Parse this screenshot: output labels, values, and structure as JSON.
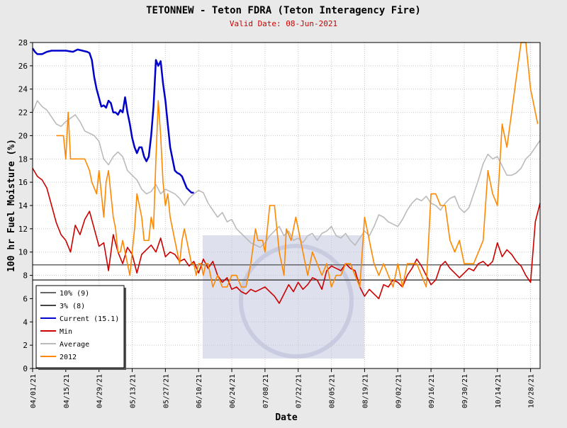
{
  "chart_data": {
    "type": "line",
    "title": "TETONNEW - Teton FDRA (Teton Interagency Fire)",
    "subtitle": "Valid Date: 08-Jun-2021",
    "xlabel": "Date",
    "ylabel": "100 hr Fuel Moisture (%)",
    "ylim": [
      0,
      28
    ],
    "yticks": [
      0,
      2,
      4,
      6,
      8,
      10,
      12,
      14,
      16,
      18,
      20,
      22,
      24,
      26,
      28
    ],
    "xlim": [
      "2021-04-01",
      "2021-11-01"
    ],
    "xticks": [
      "04/01/21",
      "04/15/21",
      "04/29/21",
      "05/13/21",
      "05/27/21",
      "06/10/21",
      "06/24/21",
      "07/08/21",
      "07/22/21",
      "08/05/21",
      "08/19/21",
      "09/02/21",
      "09/16/21",
      "09/30/21",
      "10/14/21",
      "10/28/21"
    ],
    "grid": true,
    "legend_position": "bottom-left",
    "watermark": "Teton Interagency FIRE",
    "reference_lines": [
      {
        "name": "10% (9)",
        "value": 8.9,
        "color": "#666666"
      },
      {
        "name": "3% (8)",
        "value": 7.6,
        "color": "#444444"
      }
    ],
    "series": [
      {
        "name": "Current (15.1)",
        "color": "#0000cc",
        "x": [
          "2021-04-01",
          "2021-04-02",
          "2021-04-03",
          "2021-04-05",
          "2021-04-07",
          "2021-04-09",
          "2021-04-12",
          "2021-04-15",
          "2021-04-18",
          "2021-04-20",
          "2021-04-22",
          "2021-04-24",
          "2021-04-25",
          "2021-04-26",
          "2021-04-27",
          "2021-04-28",
          "2021-04-30",
          "2021-05-01",
          "2021-05-02",
          "2021-05-03",
          "2021-05-04",
          "2021-05-05",
          "2021-05-06",
          "2021-05-07",
          "2021-05-08",
          "2021-05-09",
          "2021-05-10",
          "2021-05-11",
          "2021-05-12",
          "2021-05-13",
          "2021-05-14",
          "2021-05-15",
          "2021-05-16",
          "2021-05-17",
          "2021-05-18",
          "2021-05-19",
          "2021-05-20",
          "2021-05-21",
          "2021-05-22",
          "2021-05-23",
          "2021-05-24",
          "2021-05-25",
          "2021-05-26",
          "2021-05-27",
          "2021-05-28",
          "2021-05-29",
          "2021-05-30",
          "2021-05-31",
          "2021-06-01",
          "2021-06-02",
          "2021-06-03",
          "2021-06-04",
          "2021-06-05",
          "2021-06-06",
          "2021-06-07",
          "2021-06-08"
        ],
        "values": [
          27.5,
          27.2,
          27.0,
          27.0,
          27.2,
          27.3,
          27.3,
          27.3,
          27.2,
          27.4,
          27.3,
          27.2,
          27.1,
          26.5,
          25.0,
          24.0,
          22.5,
          22.6,
          22.4,
          23.0,
          22.8,
          22.0,
          22.0,
          21.8,
          22.2,
          22.0,
          23.3,
          22.0,
          21.0,
          19.8,
          19.0,
          18.5,
          19.0,
          19.0,
          18.2,
          17.8,
          18.2,
          20.0,
          22.5,
          26.5,
          26.0,
          26.4,
          24.5,
          23.0,
          21.0,
          19.0,
          18.0,
          17.0,
          16.8,
          16.7,
          16.5,
          16.0,
          15.5,
          15.3,
          15.1,
          15.1
        ]
      },
      {
        "name": "Min",
        "color": "#cc0000",
        "x": [
          "2021-04-01",
          "2021-04-03",
          "2021-04-05",
          "2021-04-07",
          "2021-04-09",
          "2021-04-11",
          "2021-04-13",
          "2021-04-15",
          "2021-04-17",
          "2021-04-19",
          "2021-04-21",
          "2021-04-23",
          "2021-04-25",
          "2021-04-27",
          "2021-04-29",
          "2021-05-01",
          "2021-05-03",
          "2021-05-05",
          "2021-05-07",
          "2021-05-09",
          "2021-05-11",
          "2021-05-13",
          "2021-05-15",
          "2021-05-17",
          "2021-05-19",
          "2021-05-21",
          "2021-05-23",
          "2021-05-25",
          "2021-05-27",
          "2021-05-29",
          "2021-05-31",
          "2021-06-02",
          "2021-06-04",
          "2021-06-06",
          "2021-06-08",
          "2021-06-10",
          "2021-06-12",
          "2021-06-14",
          "2021-06-16",
          "2021-06-18",
          "2021-06-20",
          "2021-06-22",
          "2021-06-24",
          "2021-06-26",
          "2021-06-28",
          "2021-06-30",
          "2021-07-02",
          "2021-07-04",
          "2021-07-06",
          "2021-07-08",
          "2021-07-10",
          "2021-07-12",
          "2021-07-14",
          "2021-07-16",
          "2021-07-18",
          "2021-07-20",
          "2021-07-22",
          "2021-07-24",
          "2021-07-26",
          "2021-07-28",
          "2021-07-30",
          "2021-08-01",
          "2021-08-03",
          "2021-08-05",
          "2021-08-07",
          "2021-08-09",
          "2021-08-11",
          "2021-08-13",
          "2021-08-15",
          "2021-08-17",
          "2021-08-19",
          "2021-08-21",
          "2021-08-23",
          "2021-08-25",
          "2021-08-27",
          "2021-08-29",
          "2021-08-31",
          "2021-09-02",
          "2021-09-04",
          "2021-09-06",
          "2021-09-08",
          "2021-09-10",
          "2021-09-12",
          "2021-09-14",
          "2021-09-16",
          "2021-09-18",
          "2021-09-20",
          "2021-09-22",
          "2021-09-24",
          "2021-09-26",
          "2021-09-28",
          "2021-09-30",
          "2021-10-02",
          "2021-10-04",
          "2021-10-06",
          "2021-10-08",
          "2021-10-10",
          "2021-10-12",
          "2021-10-14",
          "2021-10-16",
          "2021-10-18",
          "2021-10-20",
          "2021-10-22",
          "2021-10-24",
          "2021-10-26",
          "2021-10-28",
          "2021-10-30",
          "2021-11-01"
        ],
        "values": [
          17.2,
          16.5,
          16.2,
          15.5,
          14.0,
          12.5,
          11.5,
          11.0,
          10.0,
          12.3,
          11.5,
          12.8,
          13.5,
          12.0,
          10.5,
          10.8,
          8.4,
          11.5,
          10.0,
          9.0,
          10.4,
          9.8,
          8.2,
          9.8,
          10.2,
          10.6,
          10.0,
          11.2,
          9.6,
          10.0,
          9.8,
          9.2,
          9.4,
          8.8,
          9.2,
          8.2,
          9.4,
          8.6,
          9.2,
          8.0,
          7.4,
          7.8,
          6.8,
          7.0,
          6.6,
          6.4,
          6.8,
          6.6,
          6.8,
          7.0,
          6.6,
          6.2,
          5.6,
          6.4,
          7.2,
          6.6,
          7.4,
          6.8,
          7.2,
          7.8,
          7.6,
          6.8,
          8.4,
          8.8,
          8.6,
          8.4,
          9.0,
          8.6,
          8.4,
          7.0,
          6.2,
          6.8,
          6.4,
          6.0,
          7.2,
          7.0,
          7.6,
          7.4,
          7.0,
          8.0,
          8.6,
          9.4,
          8.8,
          8.0,
          7.2,
          7.6,
          8.8,
          9.2,
          8.6,
          8.2,
          7.8,
          8.2,
          8.6,
          8.4,
          9.0,
          9.2,
          8.8,
          9.2,
          10.8,
          9.6,
          10.2,
          9.8,
          9.2,
          8.8,
          8.0,
          7.4,
          12.6,
          14.2
        ]
      },
      {
        "name": "Average",
        "color": "#bbbbbb",
        "x": [
          "2021-04-01",
          "2021-04-03",
          "2021-04-05",
          "2021-04-07",
          "2021-04-09",
          "2021-04-11",
          "2021-04-13",
          "2021-04-15",
          "2021-04-17",
          "2021-04-19",
          "2021-04-21",
          "2021-04-23",
          "2021-04-25",
          "2021-04-27",
          "2021-04-29",
          "2021-05-01",
          "2021-05-03",
          "2021-05-05",
          "2021-05-07",
          "2021-05-09",
          "2021-05-11",
          "2021-05-13",
          "2021-05-15",
          "2021-05-17",
          "2021-05-19",
          "2021-05-21",
          "2021-05-23",
          "2021-05-25",
          "2021-05-27",
          "2021-05-29",
          "2021-05-31",
          "2021-06-02",
          "2021-06-04",
          "2021-06-06",
          "2021-06-08",
          "2021-06-10",
          "2021-06-12",
          "2021-06-14",
          "2021-06-16",
          "2021-06-18",
          "2021-06-20",
          "2021-06-22",
          "2021-06-24",
          "2021-06-26",
          "2021-06-28",
          "2021-06-30",
          "2021-07-02",
          "2021-07-04",
          "2021-07-06",
          "2021-07-08",
          "2021-07-10",
          "2021-07-12",
          "2021-07-14",
          "2021-07-16",
          "2021-07-18",
          "2021-07-20",
          "2021-07-22",
          "2021-07-24",
          "2021-07-26",
          "2021-07-28",
          "2021-07-30",
          "2021-08-01",
          "2021-08-03",
          "2021-08-05",
          "2021-08-07",
          "2021-08-09",
          "2021-08-11",
          "2021-08-13",
          "2021-08-15",
          "2021-08-17",
          "2021-08-19",
          "2021-08-21",
          "2021-08-23",
          "2021-08-25",
          "2021-08-27",
          "2021-08-29",
          "2021-08-31",
          "2021-09-02",
          "2021-09-04",
          "2021-09-06",
          "2021-09-08",
          "2021-09-10",
          "2021-09-12",
          "2021-09-14",
          "2021-09-16",
          "2021-09-18",
          "2021-09-20",
          "2021-09-22",
          "2021-09-24",
          "2021-09-26",
          "2021-09-28",
          "2021-09-30",
          "2021-10-02",
          "2021-10-04",
          "2021-10-06",
          "2021-10-08",
          "2021-10-10",
          "2021-10-12",
          "2021-10-14",
          "2021-10-16",
          "2021-10-18",
          "2021-10-20",
          "2021-10-22",
          "2021-10-24",
          "2021-10-26",
          "2021-10-28",
          "2021-10-30",
          "2021-11-01"
        ],
        "values": [
          22.0,
          23.0,
          22.5,
          22.2,
          21.6,
          21.0,
          20.8,
          21.2,
          21.5,
          21.8,
          21.2,
          20.4,
          20.2,
          20.0,
          19.5,
          18.0,
          17.5,
          18.2,
          18.6,
          18.2,
          17.0,
          16.6,
          16.2,
          15.4,
          15.0,
          15.2,
          15.8,
          15.0,
          15.4,
          15.2,
          15.0,
          14.6,
          14.0,
          14.6,
          15.0,
          15.3,
          15.1,
          14.2,
          13.6,
          13.0,
          13.4,
          12.6,
          12.8,
          12.0,
          11.6,
          11.2,
          10.8,
          10.6,
          10.4,
          10.8,
          11.4,
          11.8,
          12.2,
          11.4,
          11.8,
          11.0,
          11.2,
          10.8,
          11.4,
          11.6,
          11.0,
          11.6,
          11.8,
          12.2,
          11.4,
          11.2,
          11.6,
          11.0,
          10.6,
          11.2,
          11.8,
          11.4,
          12.2,
          13.2,
          13.0,
          12.6,
          12.4,
          12.2,
          12.8,
          13.6,
          14.2,
          14.6,
          14.4,
          14.8,
          14.2,
          14.0,
          13.6,
          14.2,
          14.6,
          14.8,
          13.8,
          13.4,
          13.8,
          15.0,
          16.2,
          17.6,
          18.4,
          18.0,
          18.2,
          17.4,
          16.6,
          16.6,
          16.8,
          17.2,
          18.0,
          18.4,
          19.0,
          19.6
        ]
      },
      {
        "name": "2012",
        "color": "#ff8800",
        "x": [
          "2021-04-11",
          "2021-04-14",
          "2021-04-15",
          "2021-04-16",
          "2021-04-17",
          "2021-04-20",
          "2021-04-23",
          "2021-04-25",
          "2021-04-26",
          "2021-04-28",
          "2021-04-29",
          "2021-05-01",
          "2021-05-02",
          "2021-05-03",
          "2021-05-04",
          "2021-05-05",
          "2021-05-06",
          "2021-05-07",
          "2021-05-08",
          "2021-05-09",
          "2021-05-10",
          "2021-05-11",
          "2021-05-12",
          "2021-05-13",
          "2021-05-14",
          "2021-05-15",
          "2021-05-16",
          "2021-05-17",
          "2021-05-18",
          "2021-05-19",
          "2021-05-20",
          "2021-05-21",
          "2021-05-22",
          "2021-05-23",
          "2021-05-24",
          "2021-05-25",
          "2021-05-26",
          "2021-05-27",
          "2021-05-28",
          "2021-05-29",
          "2021-05-31",
          "2021-06-01",
          "2021-06-02",
          "2021-06-03",
          "2021-06-04",
          "2021-06-05",
          "2021-06-07",
          "2021-06-08",
          "2021-06-09",
          "2021-06-10",
          "2021-06-11",
          "2021-06-12",
          "2021-06-13",
          "2021-06-14",
          "2021-06-16",
          "2021-06-18",
          "2021-06-20",
          "2021-06-22",
          "2021-06-24",
          "2021-06-26",
          "2021-06-28",
          "2021-06-30",
          "2021-07-02",
          "2021-07-04",
          "2021-07-05",
          "2021-07-07",
          "2021-07-08",
          "2021-07-10",
          "2021-07-12",
          "2021-07-14",
          "2021-07-16",
          "2021-07-17",
          "2021-07-19",
          "2021-07-21",
          "2021-07-23",
          "2021-07-24",
          "2021-07-26",
          "2021-07-28",
          "2021-07-30",
          "2021-08-01",
          "2021-08-03",
          "2021-08-05",
          "2021-08-07",
          "2021-08-09",
          "2021-08-11",
          "2021-08-13",
          "2021-08-15",
          "2021-08-17",
          "2021-08-19",
          "2021-08-21",
          "2021-08-23",
          "2021-08-25",
          "2021-08-27",
          "2021-08-29",
          "2021-08-31",
          "2021-09-02",
          "2021-09-04",
          "2021-09-06",
          "2021-09-08",
          "2021-09-10",
          "2021-09-12",
          "2021-09-14",
          "2021-09-16",
          "2021-09-18",
          "2021-09-20",
          "2021-09-22",
          "2021-09-24",
          "2021-09-26",
          "2021-09-28",
          "2021-09-30",
          "2021-10-02",
          "2021-10-04",
          "2021-10-06",
          "2021-10-08",
          "2021-10-10",
          "2021-10-12",
          "2021-10-14",
          "2021-10-16",
          "2021-10-18",
          "2021-10-20",
          "2021-10-22",
          "2021-10-24",
          "2021-10-26",
          "2021-10-28",
          "2021-10-29",
          "2021-10-31"
        ],
        "values": [
          20.0,
          20.0,
          18.0,
          22.0,
          18.0,
          18.0,
          18.0,
          17.0,
          16.0,
          15.0,
          17.0,
          13.0,
          16.0,
          17.0,
          15.0,
          13.0,
          12.0,
          10.0,
          10.0,
          11.0,
          10.0,
          9.0,
          8.0,
          10.0,
          12.0,
          15.0,
          14.0,
          13.0,
          11.0,
          11.0,
          11.0,
          13.0,
          12.0,
          18.0,
          23.0,
          20.0,
          16.0,
          14.0,
          15.0,
          13.0,
          11.0,
          10.0,
          9.0,
          11.0,
          12.0,
          11.0,
          9.0,
          9.0,
          8.0,
          9.0,
          9.0,
          8.0,
          9.0,
          9.0,
          7.0,
          8.0,
          7.0,
          7.0,
          8.0,
          8.0,
          7.0,
          7.0,
          9.0,
          12.0,
          11.0,
          11.0,
          10.0,
          14.0,
          14.0,
          10.0,
          8.0,
          12.0,
          11.0,
          13.0,
          11.0,
          10.0,
          8.0,
          10.0,
          9.0,
          8.0,
          9.0,
          7.0,
          8.0,
          8.0,
          9.0,
          9.0,
          8.0,
          7.0,
          13.0,
          11.0,
          9.0,
          8.0,
          9.0,
          8.0,
          7.0,
          9.0,
          7.0,
          9.0,
          9.0,
          9.0,
          8.0,
          7.0,
          15.0,
          15.0,
          14.0,
          14.0,
          11.0,
          10.0,
          11.0,
          9.0,
          9.0,
          9.0,
          10.0,
          11.0,
          17.0,
          15.0,
          14.0,
          21.0,
          19.0,
          22.0,
          25.0,
          28.0,
          28.0,
          24.0,
          23.0,
          21.0
        ]
      }
    ]
  }
}
